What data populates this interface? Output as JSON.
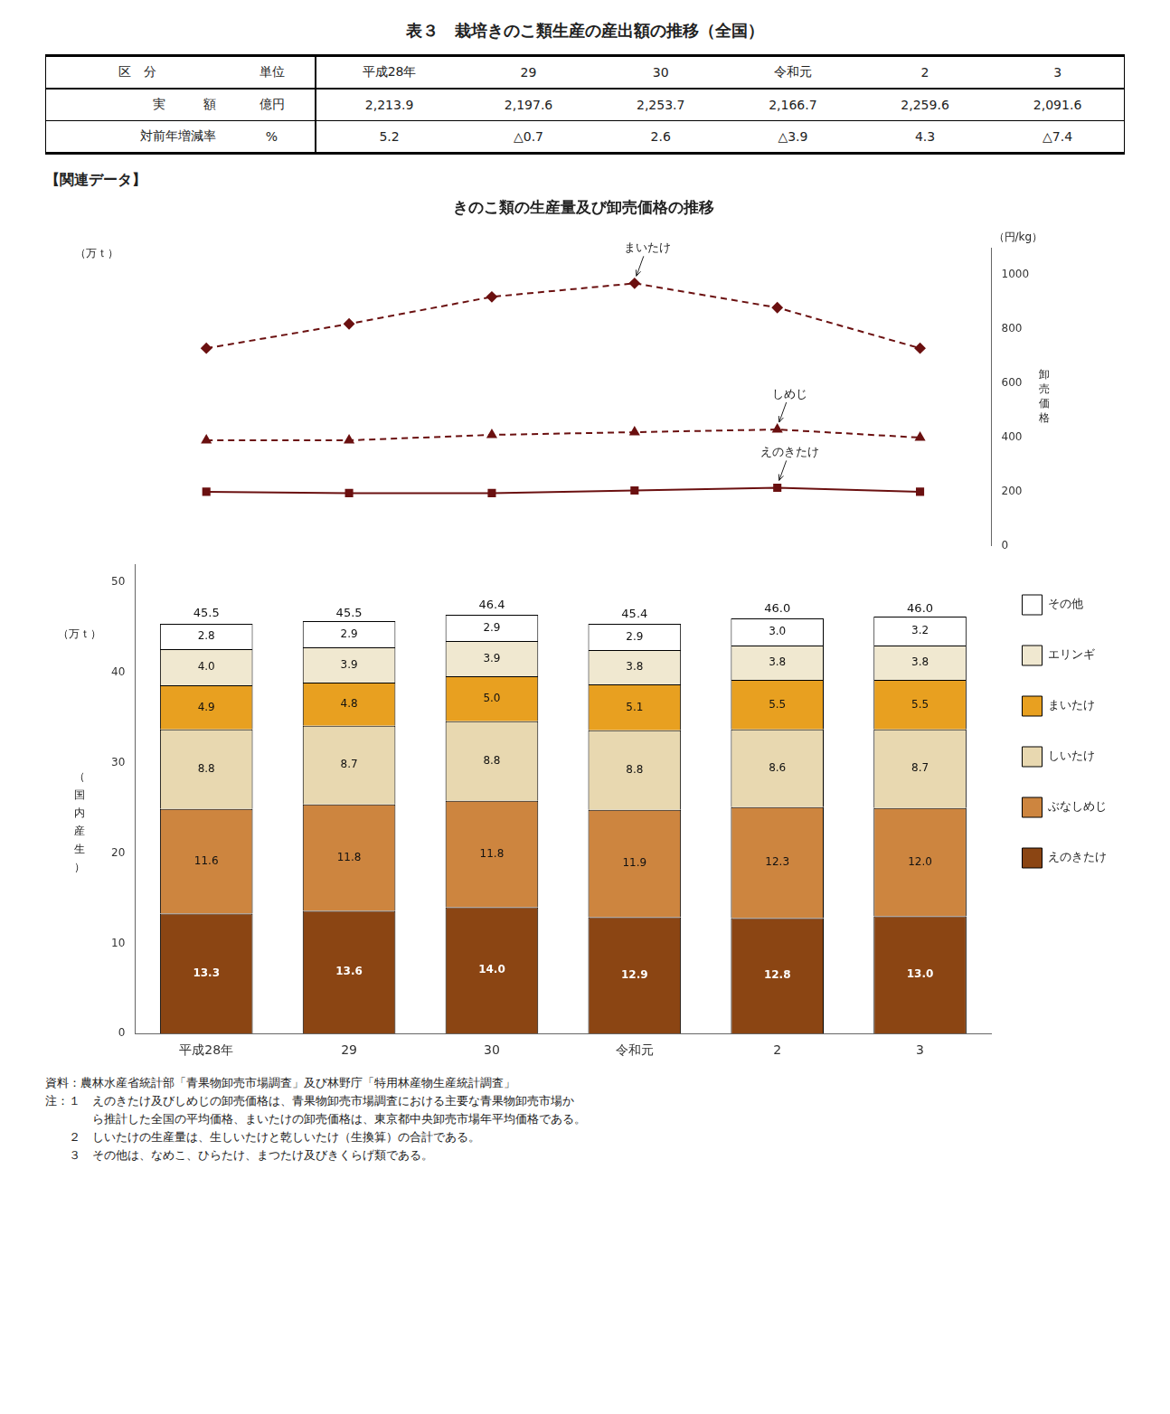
{
  "table": {
    "title": "表３　栽培きのこ類生産の産出額の推移（全国）",
    "headers": [
      "区　分",
      "単位",
      "平成28年",
      "29",
      "30",
      "令和元",
      "2",
      "3"
    ],
    "rows": [
      {
        "label": "実　　　額",
        "unit": "億円",
        "values": [
          {
            "value": 2213.9,
            "label": "2,213.9"
          },
          {
            "value": 2197.6,
            "label": "2,197.6"
          },
          {
            "value": 2253.7,
            "label": "2,253.7"
          },
          {
            "value": 2166.7,
            "label": "2,166.7"
          },
          {
            "value": 2259.6,
            "label": "2,259.6"
          },
          {
            "value": 2091.6,
            "label": "2,091.6"
          }
        ]
      },
      {
        "label": "対前年増減率",
        "unit": "%",
        "values": [
          5.2,
          {
            "value": -0.7,
            "label": "△0.7"
          },
          2.6,
          {
            "value": -3.9,
            "label": "△3.9"
          },
          4.3,
          {
            "value": -7.4,
            "label": "△7.4"
          }
        ]
      }
    ]
  },
  "section_label": "【関連データ】",
  "chart_data": [
    {
      "type": "line",
      "title": "きのこ類の生産量及び卸売価格の推移",
      "categories": [
        "平成28年",
        "29",
        "30",
        "令和元",
        "2",
        "3"
      ],
      "series": [
        {
          "name": "まいたけ",
          "color": "#6B1010",
          "values": [
            730,
            820,
            920,
            970,
            880,
            730
          ],
          "line_style": "dashed",
          "marker": "diamond",
          "axis": "y2"
        },
        {
          "name": "しめじ",
          "color": "#6B1010",
          "values": [
            390,
            390,
            410,
            420,
            430,
            400
          ],
          "line_style": "dashed",
          "marker": "triangle",
          "axis": "y2"
        },
        {
          "name": "えのきたけ",
          "color": "#6B1010",
          "values": [
            200,
            195,
            195,
            205,
            215,
            200
          ],
          "line_style": "solid",
          "marker": "square",
          "axis": "y2"
        }
      ],
      "ylabel": "（万ｔ）",
      "y2label": "卸売価格",
      "y2unit": "（円/kg）",
      "y2lim": [
        0,
        1100
      ],
      "y2ticks": [
        0,
        200,
        400,
        600,
        800,
        1000
      ],
      "grid": false,
      "tick_labels": "y"
    },
    {
      "type": "bar",
      "categories": [
        "平成28年",
        "29",
        "30",
        "令和元",
        "2",
        "3"
      ],
      "stacked": true,
      "series": [
        {
          "name": "えのきたけ",
          "color": "#8B4513",
          "values": [
            13.3,
            13.6,
            14.0,
            12.9,
            12.8,
            13.0
          ],
          "value_labels": [
            "13.3",
            "13.6",
            "14.0",
            "12.9",
            "12.8",
            "13.0"
          ]
        },
        {
          "name": "ぶなしめじ",
          "color": "#CD853F",
          "values": [
            11.6,
            11.8,
            11.8,
            11.9,
            12.3,
            12.0
          ],
          "value_labels": [
            "11.6",
            "11.8",
            "11.8",
            "11.9",
            "12.3",
            "12.0"
          ]
        },
        {
          "name": "しいたけ",
          "color": "#E8D8B0",
          "values": [
            8.8,
            8.7,
            8.8,
            8.8,
            8.6,
            8.7
          ],
          "value_labels": [
            "8.8",
            "8.7",
            "8.8",
            "8.8",
            "8.6",
            "8.7"
          ]
        },
        {
          "name": "まいたけ",
          "color": "#E8A020",
          "values": [
            4.9,
            4.8,
            5.0,
            5.1,
            5.5,
            5.5
          ],
          "value_labels": [
            "4.9",
            "4.8",
            "5.0",
            "5.1",
            "5.5",
            "5.5"
          ]
        },
        {
          "name": "エリンギ",
          "color": "#F0E8D0",
          "values": [
            4.0,
            3.9,
            3.9,
            3.8,
            3.8,
            3.8
          ],
          "value_labels": [
            "4.0",
            "3.9",
            "3.9",
            "3.8",
            "3.8",
            "3.8"
          ]
        },
        {
          "name": "その他",
          "color": "#FFFFFF",
          "values": [
            2.8,
            2.9,
            2.9,
            2.9,
            3.0,
            3.2
          ],
          "value_labels": [
            "2.8",
            "2.9",
            "2.9",
            "2.9",
            "3.0",
            "3.2"
          ]
        }
      ],
      "totals": [
        45.5,
        45.5,
        46.4,
        45.4,
        46.0,
        46.0
      ],
      "total_labels": [
        "45.5",
        "45.5",
        "46.4",
        "45.4",
        "46.0",
        "46.0"
      ],
      "data_labels": true,
      "ylabel": "（国内産生）",
      "yunit": "（万ｔ）",
      "ylim": [
        0,
        52
      ],
      "yticks": [
        0,
        10,
        20,
        30,
        40,
        50
      ],
      "grid": false,
      "legend": "right"
    }
  ],
  "footnotes": [
    "資料：農林水産省統計部「青果物卸売市場調査」及び林野庁「特用林産物生産統計調査」",
    "注：１　えのきたけ及びしめじの卸売価格は、青果物卸売市場調査における主要な青果物卸売市場か",
    "　　　　ら推計した全国の平均価格、まいたけの卸売価格は、東京都中央卸売市場年平均価格である。",
    "　　２　しいたけの生産量は、生しいたけと乾しいたけ（生換算）の合計である。",
    "　　３　その他は、なめこ、ひらたけ、まつたけ及びきくらげ類である。"
  ]
}
